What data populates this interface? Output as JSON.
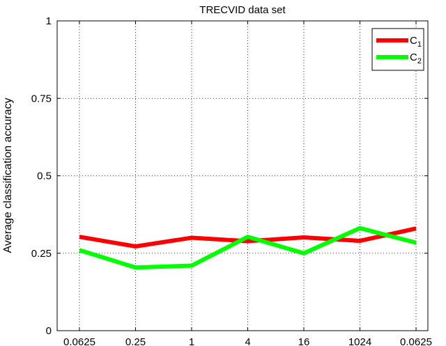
{
  "chart_data": {
    "type": "line",
    "title": "TRECVID data set",
    "xlabel": "",
    "ylabel": "Average classification accuracy",
    "categories": [
      "0.0625",
      "0.25",
      "1",
      "4",
      "16",
      "1024",
      "0.0625"
    ],
    "yticks": [
      0,
      0.25,
      0.5,
      0.75,
      1
    ],
    "ytick_labels": [
      "0",
      "0.25",
      "0.5",
      "0.75",
      "1"
    ],
    "ylim": [
      0,
      1
    ],
    "grid": true,
    "legend_position": "top-right",
    "series": [
      {
        "name": "C",
        "subscript": "1",
        "color": "#ff0000",
        "values": [
          0.303,
          0.272,
          0.3,
          0.289,
          0.301,
          0.29,
          0.33
        ]
      },
      {
        "name": "C",
        "subscript": "2",
        "color": "#00ff00",
        "values": [
          0.26,
          0.204,
          0.21,
          0.303,
          0.25,
          0.331,
          0.284
        ]
      }
    ]
  }
}
